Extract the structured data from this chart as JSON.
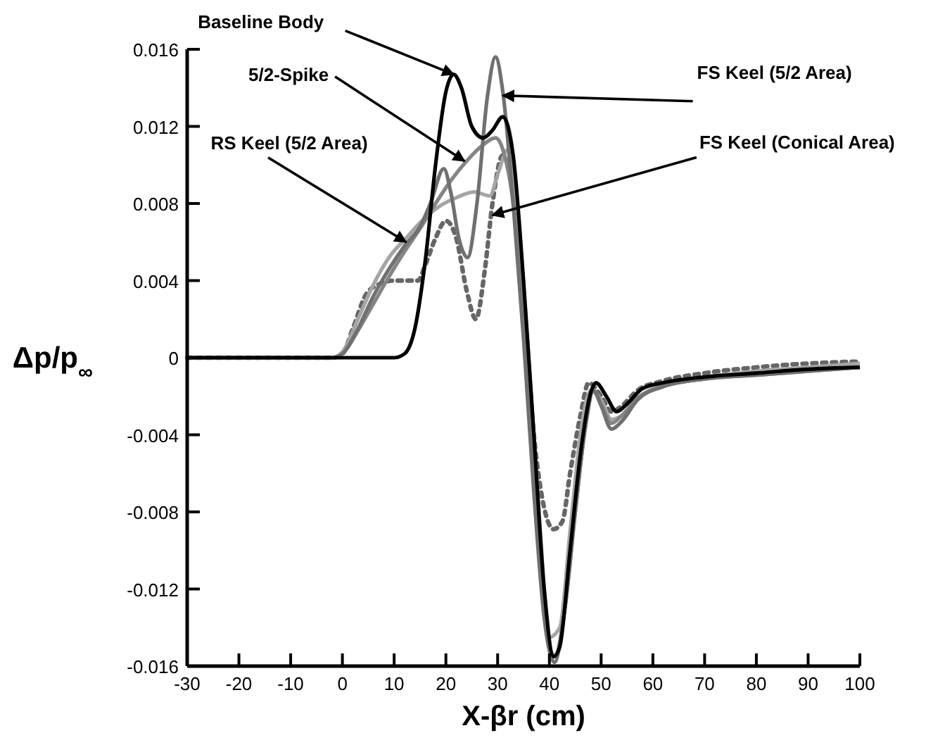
{
  "chart_data": {
    "type": "line",
    "xlabel": "X-βr (cm)",
    "ylabel": "Δp/p$_{∞}$",
    "xlim": [
      -30,
      100
    ],
    "xticks": [
      -30,
      -20,
      -10,
      0,
      10,
      20,
      30,
      40,
      50,
      60,
      70,
      80,
      90,
      100
    ],
    "ylim": [
      -0.016,
      0.016
    ],
    "yticks": [
      -0.016,
      -0.012,
      -0.008,
      -0.004,
      0,
      0.004,
      0.008,
      0.012,
      0.016
    ],
    "grid": false,
    "marker": "none",
    "series": [
      {
        "color": "#000000",
        "line_style": "solid",
        "x": [
          -30,
          10,
          12,
          14,
          16,
          18,
          20,
          21.5,
          23,
          25,
          27.2,
          29,
          31,
          33,
          35,
          37,
          39,
          40.8,
          42,
          44,
          46,
          48,
          49,
          51,
          53,
          55,
          58,
          62,
          70,
          80,
          90,
          100
        ],
        "values": [
          0,
          0,
          0.0002,
          0.0015,
          0.005,
          0.01,
          0.0138,
          0.0147,
          0.014,
          0.012,
          0.0114,
          0.0118,
          0.0125,
          0.0105,
          0.004,
          -0.004,
          -0.012,
          -0.0155,
          -0.015,
          -0.01,
          -0.005,
          -0.0018,
          -0.0013,
          -0.002,
          -0.0028,
          -0.0024,
          -0.0016,
          -0.0013,
          -0.001,
          -0.0008,
          -0.0006,
          -0.0005
        ]
      },
      {
        "color": "#707070",
        "line_style": "solid",
        "x": [
          -30,
          -2,
          0,
          3,
          6,
          9,
          12,
          15,
          17,
          19.6,
          21,
          22.5,
          24.2,
          26,
          28,
          29.6,
          31,
          33,
          35,
          37,
          39,
          41,
          43,
          45,
          47,
          48.5,
          50,
          52,
          54,
          57,
          62,
          70,
          80,
          90,
          100
        ],
        "values": [
          0,
          0,
          0.0002,
          0.0015,
          0.0032,
          0.0046,
          0.0058,
          0.0068,
          0.008,
          0.0098,
          0.0085,
          0.0062,
          0.0052,
          0.008,
          0.0135,
          0.0156,
          0.0138,
          0.008,
          0.001,
          -0.007,
          -0.0135,
          -0.0158,
          -0.013,
          -0.008,
          -0.0035,
          -0.0017,
          -0.0025,
          -0.0037,
          -0.0033,
          -0.0022,
          -0.0015,
          -0.0011,
          -0.0009,
          -0.0007,
          -0.0005
        ]
      },
      {
        "color": "#858585",
        "line_style": "solid",
        "x": [
          -30,
          -2,
          0,
          3,
          6,
          9,
          12,
          15,
          18,
          21,
          24,
          27,
          29.6,
          31,
          33,
          35,
          37,
          39,
          41,
          43,
          45,
          47,
          48.5,
          50,
          52,
          54,
          57,
          62,
          70,
          80,
          90,
          100
        ],
        "values": [
          0,
          0,
          0.0002,
          0.0014,
          0.0028,
          0.0042,
          0.0055,
          0.0067,
          0.008,
          0.0092,
          0.0102,
          0.011,
          0.0114,
          0.0108,
          0.008,
          0.002,
          -0.006,
          -0.013,
          -0.0155,
          -0.013,
          -0.008,
          -0.0035,
          -0.0017,
          -0.0024,
          -0.0034,
          -0.003,
          -0.0021,
          -0.0015,
          -0.0011,
          -0.0009,
          -0.0007,
          -0.0005
        ]
      },
      {
        "color": "#a5a5a5",
        "line_style": "solid",
        "x": [
          -30,
          -2,
          0,
          3,
          6,
          9,
          12.3,
          15,
          19,
          22,
          25.5,
          28.5,
          30,
          32,
          34,
          36,
          38,
          40,
          42,
          44,
          46,
          48,
          50,
          52,
          54,
          57,
          62,
          70,
          80,
          90,
          100
        ],
        "values": [
          0,
          0,
          0.0003,
          0.002,
          0.0038,
          0.0052,
          0.0062,
          0.007,
          0.0079,
          0.0083,
          0.0086,
          0.0084,
          0.0095,
          0.0108,
          0.007,
          0.0,
          -0.008,
          -0.0145,
          -0.014,
          -0.009,
          -0.004,
          -0.0017,
          -0.0022,
          -0.0032,
          -0.003,
          -0.0021,
          -0.0014,
          -0.001,
          -0.0007,
          -0.0005,
          -0.0003
        ]
      },
      {
        "color": "#666666",
        "line_style": "dotted",
        "x": [
          -30,
          -2,
          0,
          2,
          4.6,
          7,
          10,
          14.6,
          16,
          18,
          20,
          22,
          24,
          25.8,
          27.5,
          29,
          31,
          33,
          35,
          37,
          39,
          40.8,
          42.5,
          44,
          46,
          47.6,
          50,
          52,
          54,
          57,
          62,
          70,
          80,
          90,
          100
        ],
        "values": [
          0,
          0,
          0.0002,
          0.0015,
          0.0033,
          0.0038,
          0.004,
          0.004,
          0.0048,
          0.0062,
          0.0071,
          0.0062,
          0.0035,
          0.002,
          0.0045,
          0.008,
          0.0105,
          0.0085,
          0.003,
          -0.004,
          -0.0078,
          -0.0089,
          -0.0085,
          -0.006,
          -0.003,
          -0.0013,
          -0.002,
          -0.0028,
          -0.0025,
          -0.0017,
          -0.0012,
          -0.0008,
          -0.0005,
          -0.0003,
          -0.0002
        ]
      }
    ],
    "annotations": [
      {
        "text": "Baseline Body",
        "x": 21.5,
        "y": 0.0147
      },
      {
        "text": "5/2-Spike",
        "x": 23.6,
        "y": 0.0102
      },
      {
        "text": "RS Keel (5/2 Area)",
        "x": 12.3,
        "y": 0.006
      },
      {
        "text": "FS Keel (5/2 Area)",
        "x": 31,
        "y": 0.0136
      },
      {
        "text": "FS Keel (Conical Area)",
        "x": 29,
        "y": 0.0074
      }
    ]
  }
}
